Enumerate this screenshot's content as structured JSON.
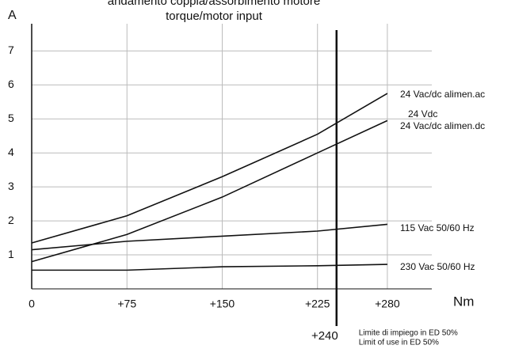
{
  "chart_data": {
    "type": "line",
    "title": "andamento coppia/assorbimento motore",
    "subtitle": "torque/motor input",
    "y_label": "A",
    "x_label": "Nm",
    "x": [
      0,
      75,
      150,
      225,
      280
    ],
    "xlim": [
      0,
      315
    ],
    "xticks": [
      0,
      {
        "value": 75,
        "label": "+75"
      },
      {
        "value": 150,
        "label": "+150"
      },
      {
        "value": 225,
        "label": "+225"
      },
      {
        "value": 280,
        "label": "+280"
      }
    ],
    "ylim": [
      0,
      7.8
    ],
    "yticks": [
      1,
      2,
      3,
      4,
      5,
      6,
      7
    ],
    "grid": true,
    "series": [
      {
        "name": "24 Vac/dc alimen.ac",
        "color": "#111111",
        "values": [
          1.35,
          2.15,
          3.3,
          4.55,
          5.75
        ]
      },
      {
        "name": "24 Vac/dc alimen.dc",
        "color": "#111111",
        "values": [
          0.8,
          1.6,
          2.7,
          4.0,
          4.95
        ]
      },
      {
        "name": "115 Vac 50/60 Hz",
        "color": "#111111",
        "values": [
          1.15,
          1.4,
          1.55,
          1.7,
          1.9
        ]
      },
      {
        "name": "230 Vac 50/60 Hz",
        "color": "#111111",
        "values": [
          0.55,
          0.55,
          0.65,
          0.68,
          0.72
        ]
      }
    ],
    "annotations": [
      "24 Vdc"
    ],
    "limit_line": {
      "x": 240,
      "label": "+240",
      "notes": [
        "Limite di impiego in ED 50%",
        "Limit of use in ED 50%"
      ]
    }
  }
}
